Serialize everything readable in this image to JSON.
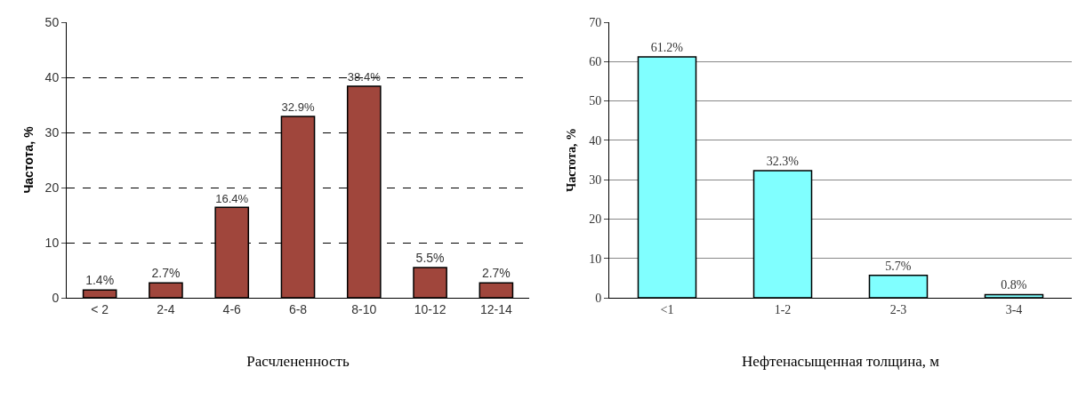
{
  "chart_data": [
    {
      "type": "bar",
      "xlabel": "Расчлененность",
      "ylabel": "Частота, %",
      "categories": [
        "< 2",
        "2-4",
        "4-6",
        "6-8",
        "8-10",
        "10-12",
        "12-14"
      ],
      "values": [
        1.4,
        2.7,
        16.4,
        32.9,
        38.4,
        5.5,
        2.7
      ],
      "value_labels": [
        "1.4%",
        "2.7%",
        "16.4%",
        "32.9%",
        "38.4%",
        "5.5%",
        "2.7%"
      ],
      "color": "#a0463c",
      "ylim": [
        0,
        50
      ],
      "yticks": [
        0,
        10,
        20,
        30,
        40,
        50
      ],
      "grid": "y",
      "line_style": "dashed"
    },
    {
      "type": "bar",
      "xlabel": "Нефтенасыщенная толщина, м",
      "ylabel": "Частота, %",
      "categories": [
        "<1",
        "1-2",
        "2-3",
        "3-4"
      ],
      "values": [
        61.2,
        32.3,
        5.7,
        0.8
      ],
      "value_labels": [
        "61.2%",
        "32.3%",
        "5.7%",
        "0.8%"
      ],
      "color": "#80ffff",
      "ylim": [
        0,
        70
      ],
      "yticks": [
        0,
        10,
        20,
        30,
        40,
        50,
        60,
        70
      ],
      "grid": "y",
      "line_style": "solid"
    }
  ]
}
